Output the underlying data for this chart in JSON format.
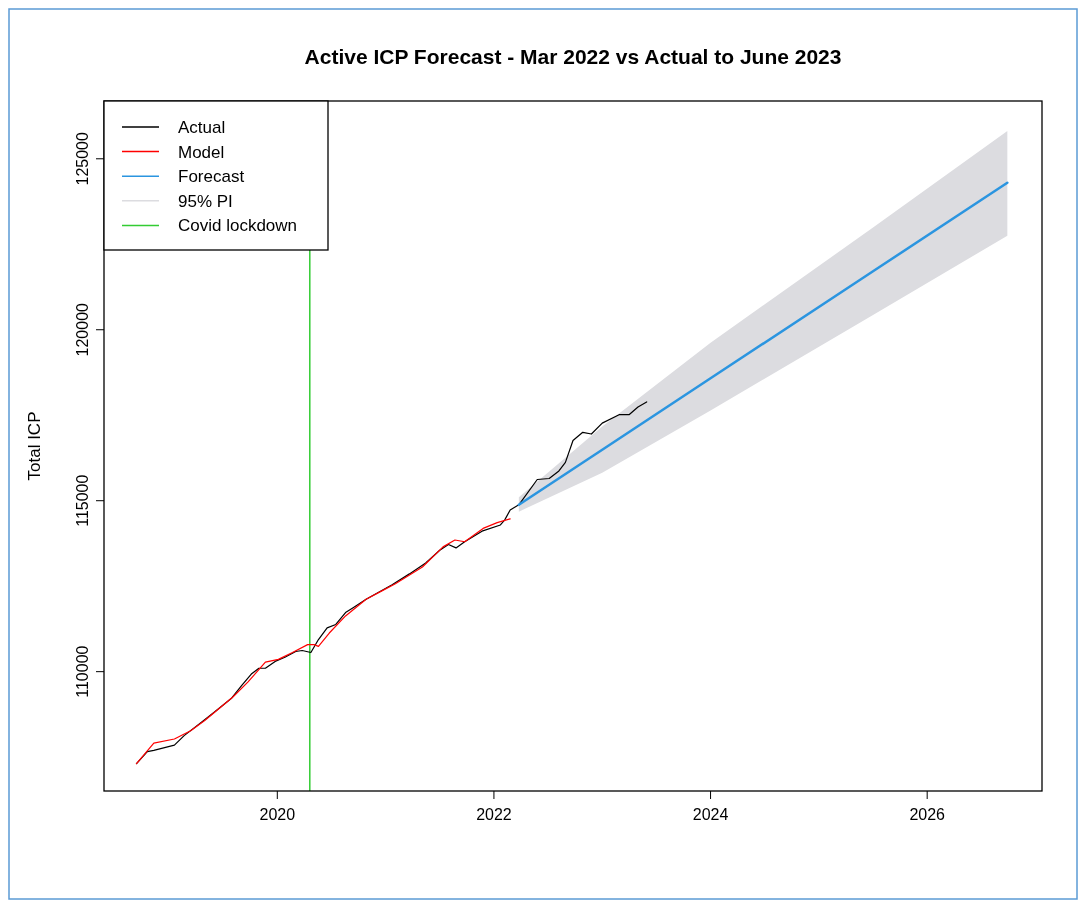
{
  "chart_data": {
    "type": "line",
    "title": "Active ICP Forecast - Mar 2022 vs Actual to June 2023",
    "ylabel": "Total ICP",
    "xlim": [
      2018.4,
      2027.06
    ],
    "xticks": [
      2020,
      2022,
      2024,
      2026
    ],
    "ylim": [
      106510,
      126690
    ],
    "yticks": [
      110000,
      115000,
      120000,
      125000
    ],
    "grid": false,
    "legend": "top left",
    "line_style": "solid",
    "marker": "none",
    "series": [
      {
        "name": "Actual",
        "color": "#000000",
        "x": [
          2018.7,
          2018.8,
          2018.86,
          2019.05,
          2019.14,
          2019.3,
          2019.42,
          2019.58,
          2019.67,
          2019.76,
          2019.83,
          2019.89,
          2019.98,
          2020.07,
          2020.17,
          2020.23,
          2020.31,
          2020.38,
          2020.46,
          2020.54,
          2020.63,
          2020.7,
          2020.82,
          2021.06,
          2021.22,
          2021.37,
          2021.5,
          2021.58,
          2021.65,
          2021.73,
          2021.89,
          2022.06,
          2022.1,
          2022.15,
          2022.23,
          2022.4,
          2022.51,
          2022.6,
          2022.66,
          2022.73,
          2022.82,
          2022.9,
          2023.0,
          2023.16,
          2023.25,
          2023.33,
          2023.41
        ],
        "values": [
          107310,
          107660,
          107700,
          107850,
          108130,
          108520,
          108820,
          109230,
          109590,
          109930,
          110100,
          110100,
          110300,
          110420,
          110590,
          110620,
          110560,
          110940,
          111280,
          111380,
          111730,
          111870,
          112120,
          112540,
          112860,
          113180,
          113550,
          113720,
          113620,
          113800,
          114110,
          114290,
          114440,
          114730,
          114880,
          115620,
          115650,
          115870,
          116120,
          116760,
          117000,
          116950,
          117270,
          117520,
          117520,
          117740,
          117890
        ]
      },
      {
        "name": "Model",
        "color": "#ff0000",
        "x": [
          2018.7,
          2018.86,
          2019.05,
          2019.2,
          2019.33,
          2019.59,
          2019.73,
          2019.89,
          2020.01,
          2020.14,
          2020.28,
          2020.34,
          2020.38,
          2020.48,
          2020.63,
          2020.82,
          2020.97,
          2021.09,
          2021.34,
          2021.53,
          2021.64,
          2021.73,
          2021.9,
          2022.03,
          2022.15
        ],
        "values": [
          107310,
          107910,
          108030,
          108270,
          108570,
          109260,
          109700,
          110280,
          110360,
          110560,
          110790,
          110790,
          110740,
          111130,
          111630,
          112120,
          112370,
          112570,
          113060,
          113650,
          113850,
          113800,
          114190,
          114360,
          114470
        ]
      },
      {
        "name": "Forecast",
        "color": "#2b95e0",
        "x": [
          2022.23,
          2023.0,
          2024.0,
          2025.5,
          2026.74
        ],
        "values": [
          114880,
          116490,
          118580,
          121710,
          124300
        ],
        "lower": [
          114680,
          115820,
          117640,
          120430,
          122750
        ],
        "upper": [
          115100,
          117170,
          119620,
          122990,
          125810
        ]
      }
    ],
    "annotations": [
      "95% PI"
    ],
    "ref_lines": [
      {
        "axis": "x",
        "value": 2020.3,
        "label": "Covid lockdown",
        "color": "#33cc33"
      }
    ]
  }
}
